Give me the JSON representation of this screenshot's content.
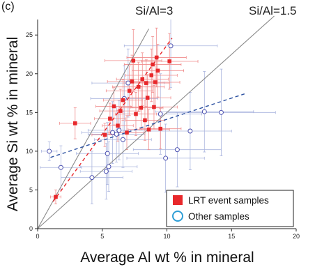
{
  "panel_label": "(c)",
  "legend": {
    "items": [
      {
        "label": "LRT event samples",
        "marker": "filled-square",
        "color": "#e8282b"
      },
      {
        "label": "Other samples",
        "marker": "open-circle",
        "color": "#2e9ed6"
      }
    ]
  },
  "colors": {
    "lrt": "#e8282b",
    "lrt_errorbar": "#f08c8c",
    "other": "#3a3fa8",
    "other_errorbar": "#a9b4de",
    "ratio_line": "#8a8a8a",
    "fit_lrt": "#e8282b",
    "fit_other": "#2a4fa0"
  },
  "chart_data": {
    "type": "scatter",
    "title": "",
    "xlabel": "Average Al wt % in mineral",
    "ylabel": "Average Si wt % in mineral",
    "xlim": [
      0,
      20
    ],
    "ylim": [
      0,
      27
    ],
    "x_ticks": [
      "0",
      "5",
      "10",
      "15",
      "20"
    ],
    "y_ticks": [
      "0",
      "5",
      "10",
      "15",
      "20",
      "25"
    ],
    "grid": false,
    "legend_position": "bottom-right",
    "reference_lines": [
      {
        "label": "Si/Al=3",
        "slope": 3,
        "color": "#8a8a8a"
      },
      {
        "label": "Si/Al=1.5",
        "slope": 1.5,
        "color": "#8a8a8a"
      }
    ],
    "fit_lines": [
      {
        "series": "LRT event samples",
        "style": "dashed",
        "x": [
          1.2,
          10.4
        ],
        "y": [
          3.5,
          24.6
        ]
      },
      {
        "series": "Other samples",
        "style": "dashed",
        "x": [
          1.0,
          16.0
        ],
        "y": [
          9.2,
          17.4
        ]
      }
    ],
    "series": [
      {
        "name": "LRT event samples",
        "marker": "filled-square",
        "points": [
          {
            "x": 1.4,
            "y": 4.1,
            "xerr": 0.4,
            "yerr": 0.9
          },
          {
            "x": 2.9,
            "y": 13.6,
            "xerr": 1.2,
            "yerr": 2.0
          },
          {
            "x": 5.2,
            "y": 12.1,
            "xerr": 1.0,
            "yerr": 1.5
          },
          {
            "x": 5.6,
            "y": 14.2,
            "xerr": 1.2,
            "yerr": 2.0
          },
          {
            "x": 5.9,
            "y": 15.8,
            "xerr": 1.4,
            "yerr": 2.4
          },
          {
            "x": 6.2,
            "y": 13.3,
            "xerr": 1.2,
            "yerr": 2.0
          },
          {
            "x": 6.4,
            "y": 15.2,
            "xerr": 1.6,
            "yerr": 2.8
          },
          {
            "x": 6.6,
            "y": 16.6,
            "xerr": 1.5,
            "yerr": 2.6
          },
          {
            "x": 6.9,
            "y": 12.4,
            "xerr": 1.4,
            "yerr": 2.2
          },
          {
            "x": 7.1,
            "y": 17.8,
            "xerr": 1.8,
            "yerr": 3.2
          },
          {
            "x": 7.3,
            "y": 19.0,
            "xerr": 1.9,
            "yerr": 3.4
          },
          {
            "x": 7.4,
            "y": 21.7,
            "xerr": 2.2,
            "yerr": 4.0
          },
          {
            "x": 7.6,
            "y": 14.8,
            "xerr": 1.6,
            "yerr": 2.8
          },
          {
            "x": 7.8,
            "y": 18.3,
            "xerr": 2.0,
            "yerr": 3.2
          },
          {
            "x": 8.0,
            "y": 15.6,
            "xerr": 1.7,
            "yerr": 2.8
          },
          {
            "x": 8.1,
            "y": 19.3,
            "xerr": 2.0,
            "yerr": 3.4
          },
          {
            "x": 8.3,
            "y": 14.0,
            "xerr": 1.5,
            "yerr": 2.6
          },
          {
            "x": 8.4,
            "y": 18.8,
            "xerr": 1.8,
            "yerr": 3.0
          },
          {
            "x": 8.5,
            "y": 16.9,
            "xerr": 1.8,
            "yerr": 3.0
          },
          {
            "x": 8.6,
            "y": 12.8,
            "xerr": 1.6,
            "yerr": 2.6
          },
          {
            "x": 8.8,
            "y": 19.8,
            "xerr": 2.0,
            "yerr": 3.4
          },
          {
            "x": 8.9,
            "y": 21.2,
            "xerr": 2.2,
            "yerr": 3.6
          },
          {
            "x": 9.0,
            "y": 15.7,
            "xerr": 1.8,
            "yerr": 2.8
          },
          {
            "x": 9.1,
            "y": 18.9,
            "xerr": 1.9,
            "yerr": 3.2
          },
          {
            "x": 9.2,
            "y": 22.1,
            "xerr": 2.3,
            "yerr": 3.8
          },
          {
            "x": 9.3,
            "y": 20.4,
            "xerr": 2.0,
            "yerr": 3.4
          },
          {
            "x": 9.5,
            "y": 12.9,
            "xerr": 1.6,
            "yerr": 2.6
          },
          {
            "x": 10.2,
            "y": 21.6,
            "xerr": 2.2,
            "yerr": 3.6
          }
        ]
      },
      {
        "name": "Other samples",
        "marker": "open-circle",
        "points": [
          {
            "x": 0.9,
            "y": 10.0,
            "xerr": 0.6,
            "yerr": 1.2
          },
          {
            "x": 1.8,
            "y": 7.9,
            "xerr": 1.6,
            "yerr": 2.8
          },
          {
            "x": 4.2,
            "y": 6.6,
            "xerr": 2.4,
            "yerr": 3.4
          },
          {
            "x": 5.3,
            "y": 7.4,
            "xerr": 2.0,
            "yerr": 3.6
          },
          {
            "x": 5.5,
            "y": 8.0,
            "xerr": 2.2,
            "yerr": 3.2
          },
          {
            "x": 5.4,
            "y": 9.7,
            "xerr": 2.4,
            "yerr": 4.0
          },
          {
            "x": 5.8,
            "y": 12.4,
            "xerr": 2.4,
            "yerr": 4.0
          },
          {
            "x": 6.1,
            "y": 12.2,
            "xerr": 2.2,
            "yerr": 3.6
          },
          {
            "x": 6.3,
            "y": 12.7,
            "xerr": 2.4,
            "yerr": 3.8
          },
          {
            "x": 6.6,
            "y": 11.5,
            "xerr": 2.2,
            "yerr": 3.6
          },
          {
            "x": 6.7,
            "y": 16.8,
            "xerr": 2.6,
            "yerr": 4.2
          },
          {
            "x": 7.0,
            "y": 18.8,
            "xerr": 2.8,
            "yerr": 4.4
          },
          {
            "x": 9.5,
            "y": 14.8,
            "xerr": 3.2,
            "yerr": 5.2
          },
          {
            "x": 9.9,
            "y": 9.1,
            "xerr": 3.0,
            "yerr": 4.4
          },
          {
            "x": 10.3,
            "y": 23.6,
            "xerr": 3.6,
            "yerr": 5.4
          },
          {
            "x": 10.8,
            "y": 10.2,
            "xerr": 3.4,
            "yerr": 4.8
          },
          {
            "x": 11.8,
            "y": 12.6,
            "xerr": 3.2,
            "yerr": 5.0
          },
          {
            "x": 12.9,
            "y": 15.1,
            "xerr": 3.8,
            "yerr": 5.2
          },
          {
            "x": 14.2,
            "y": 15.0,
            "xerr": 4.2,
            "yerr": 5.6
          }
        ]
      }
    ]
  }
}
